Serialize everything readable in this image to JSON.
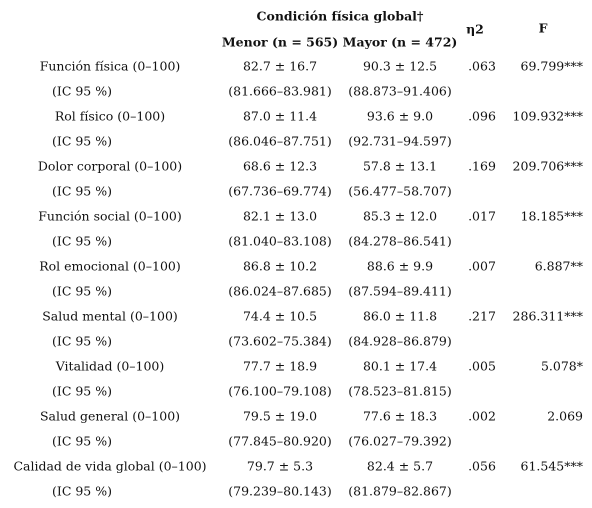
{
  "header": {
    "group_title": "Condición física global†",
    "menor": "Menor (n = 565)",
    "mayor": "Mayor (n = 472)",
    "eta2": "η2",
    "f": "F"
  },
  "table": {
    "rows": [
      {
        "measure": "Función física (0–100)",
        "menor": "82.7 ± 16.7",
        "mayor": "90.3 ± 12.5",
        "eta2": ".063",
        "f": "69.799***",
        "ci_label": "(IC 95 %)",
        "ci_menor": "(81.666–83.981)",
        "ci_mayor": "(88.873–91.406)"
      },
      {
        "measure": "Rol físico (0–100)",
        "menor": "87.0 ± 11.4",
        "mayor": "93.6 ± 9.0",
        "eta2": ".096",
        "f": "109.932***",
        "ci_label": "(IC 95 %)",
        "ci_menor": "(86.046–87.751)",
        "ci_mayor": "(92.731–94.597)"
      },
      {
        "measure": "Dolor corporal (0–100)",
        "menor": "68.6 ± 12.3",
        "mayor": "57.8 ± 13.1",
        "eta2": ".169",
        "f": "209.706***",
        "ci_label": "(IC 95 %)",
        "ci_menor": "(67.736–69.774)",
        "ci_mayor": "(56.477–58.707)"
      },
      {
        "measure": "Función social (0–100)",
        "menor": "82.1 ± 13.0",
        "mayor": "85.3 ± 12.0",
        "eta2": ".017",
        "f": "18.185***",
        "ci_label": "(IC 95 %)",
        "ci_menor": "(81.040–83.108)",
        "ci_mayor": "(84.278–86.541)"
      },
      {
        "measure": "Rol emocional (0–100)",
        "menor": "86.8 ± 10.2",
        "mayor": "88.6 ± 9.9",
        "eta2": ".007",
        "f": "6.887**",
        "ci_label": "(IC 95 %)",
        "ci_menor": "(86.024–87.685)",
        "ci_mayor": "(87.594–89.411)"
      },
      {
        "measure": "Salud mental (0–100)",
        "menor": "74.4 ± 10.5",
        "mayor": "86.0 ± 11.8",
        "eta2": ".217",
        "f": "286.311***",
        "ci_label": "(IC 95 %)",
        "ci_menor": "(73.602–75.384)",
        "ci_mayor": "(84.928–86.879)"
      },
      {
        "measure": "Vitalidad (0–100)",
        "menor": "77.7 ± 18.9",
        "mayor": "80.1 ± 17.4",
        "eta2": ".005",
        "f": "5.078*",
        "ci_label": "(IC 95 %)",
        "ci_menor": "(76.100–79.108)",
        "ci_mayor": "(78.523–81.815)"
      },
      {
        "measure": "Salud general (0–100)",
        "menor": "79.5 ± 19.0",
        "mayor": "77.6 ± 18.3",
        "eta2": ".002",
        "f": "2.069",
        "ci_label": "(IC 95 %)",
        "ci_menor": "(77.845–80.920)",
        "ci_mayor": "(76.027–79.392)"
      },
      {
        "measure": "Calidad de vida global (0–100)",
        "menor": "79.7 ± 5.3",
        "mayor": "82.4 ± 5.7",
        "eta2": ".056",
        "f": "61.545***",
        "ci_label": "(IC 95 %)",
        "ci_menor": "(79.239–80.143)",
        "ci_mayor": "(81.879–82.867)"
      }
    ]
  }
}
